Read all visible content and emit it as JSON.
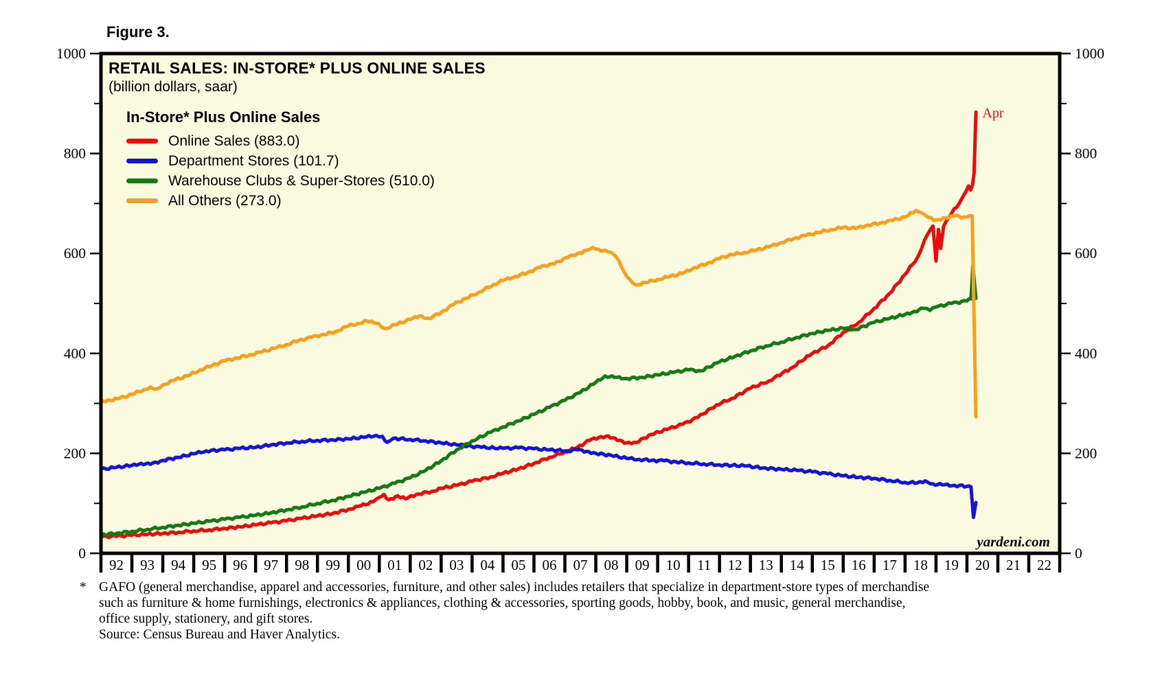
{
  "figure_label": "Figure 3.",
  "chart": {
    "title": "RETAIL SALES: IN-STORE* PLUS ONLINE SALES",
    "subtitle": "(billion dollars, saar)",
    "legend_title": "In-Store* Plus Online Sales",
    "watermark": "yardeni.com",
    "plot_background": "#fafae0",
    "border_color": "#000000"
  },
  "chart_data": {
    "type": "line",
    "title": "RETAIL SALES: IN-STORE* PLUS ONLINE SALES",
    "subtitle": "(billion dollars, saar)",
    "legend_title": "In-Store* Plus Online Sales",
    "legend_position": "upper-left",
    "grid": false,
    "x_range": [
      1992,
      2023
    ],
    "y_range": [
      0,
      1000
    ],
    "y_major_ticks": [
      0,
      200,
      400,
      600,
      800,
      1000
    ],
    "y_minor_ticks": [
      100,
      300,
      500,
      700,
      900
    ],
    "x_labels": [
      "92",
      "93",
      "94",
      "95",
      "96",
      "97",
      "98",
      "99",
      "00",
      "01",
      "02",
      "03",
      "04",
      "05",
      "06",
      "07",
      "08",
      "09",
      "10",
      "11",
      "12",
      "13",
      "14",
      "15",
      "16",
      "17",
      "18",
      "19",
      "20",
      "21",
      "22"
    ],
    "annotation": {
      "text": "Apr",
      "color": "#e80c0c",
      "x_year": 2020.5,
      "y_value": 872
    },
    "watermark": "yardeni.com",
    "series": [
      {
        "name": "Online Sales (883.0)",
        "slug": "online-sales",
        "color": "#e80c0c",
        "last_value": 883.0,
        "values": [
          [
            1992,
            33
          ],
          [
            1992.5,
            34
          ],
          [
            1993,
            36
          ],
          [
            1993.5,
            38
          ],
          [
            1994,
            40
          ],
          [
            1994.5,
            42
          ],
          [
            1995,
            45
          ],
          [
            1995.5,
            47
          ],
          [
            1996,
            50
          ],
          [
            1996.5,
            53
          ],
          [
            1997,
            57
          ],
          [
            1997.5,
            61
          ],
          [
            1998,
            65
          ],
          [
            1998.5,
            70
          ],
          [
            1999,
            75
          ],
          [
            1999.5,
            80
          ],
          [
            2000,
            88
          ],
          [
            2000.4,
            95
          ],
          [
            2000.8,
            103
          ],
          [
            2001,
            112
          ],
          [
            2001.15,
            118
          ],
          [
            2001.3,
            107
          ],
          [
            2001.6,
            115
          ],
          [
            2001.85,
            109
          ],
          [
            2002.2,
            118
          ],
          [
            2002.7,
            124
          ],
          [
            2003,
            130
          ],
          [
            2003.5,
            136
          ],
          [
            2004,
            144
          ],
          [
            2004.6,
            153
          ],
          [
            2005,
            160
          ],
          [
            2005.5,
            169
          ],
          [
            2006,
            180
          ],
          [
            2006.5,
            192
          ],
          [
            2007,
            203
          ],
          [
            2007.4,
            212
          ],
          [
            2007.8,
            226
          ],
          [
            2008.1,
            232
          ],
          [
            2008.4,
            235
          ],
          [
            2008.7,
            226
          ],
          [
            2009,
            221
          ],
          [
            2009.3,
            222
          ],
          [
            2009.8,
            238
          ],
          [
            2010.3,
            248
          ],
          [
            2010.8,
            258
          ],
          [
            2011.3,
            272
          ],
          [
            2011.9,
            297
          ],
          [
            2012.4,
            310
          ],
          [
            2013,
            330
          ],
          [
            2013.6,
            345
          ],
          [
            2014.3,
            370
          ],
          [
            2015,
            400
          ],
          [
            2015.5,
            415
          ],
          [
            2016,
            442
          ],
          [
            2016.5,
            462
          ],
          [
            2017,
            490
          ],
          [
            2017.5,
            520
          ],
          [
            2018,
            558
          ],
          [
            2018.4,
            592
          ],
          [
            2018.7,
            635
          ],
          [
            2018.9,
            655
          ],
          [
            2019,
            585
          ],
          [
            2019.08,
            648
          ],
          [
            2019.15,
            610
          ],
          [
            2019.25,
            655
          ],
          [
            2019.5,
            680
          ],
          [
            2019.75,
            700
          ],
          [
            2019.95,
            722
          ],
          [
            2020.05,
            735
          ],
          [
            2020.12,
            727
          ],
          [
            2020.18,
            737
          ],
          [
            2020.23,
            760
          ],
          [
            2020.29,
            883
          ]
        ]
      },
      {
        "name": "Department Stores (101.7)",
        "slug": "department-stores",
        "color": "#1414d8",
        "last_value": 101.7,
        "values": [
          [
            1992,
            168
          ],
          [
            1992.5,
            172
          ],
          [
            1993,
            176
          ],
          [
            1993.3,
            180
          ],
          [
            1993.6,
            178
          ],
          [
            1994,
            186
          ],
          [
            1994.5,
            192
          ],
          [
            1995,
            199
          ],
          [
            1995.4,
            205
          ],
          [
            1996,
            207
          ],
          [
            1996.5,
            210
          ],
          [
            1997,
            212
          ],
          [
            1997.5,
            217
          ],
          [
            1998,
            221
          ],
          [
            1998.5,
            224
          ],
          [
            1999,
            226
          ],
          [
            1999.5,
            227
          ],
          [
            2000,
            229
          ],
          [
            2000.5,
            232
          ],
          [
            2000.9,
            236
          ],
          [
            2001.1,
            234
          ],
          [
            2001.25,
            222
          ],
          [
            2001.45,
            230
          ],
          [
            2002,
            228
          ],
          [
            2002.5,
            225
          ],
          [
            2003,
            221
          ],
          [
            2003.5,
            217
          ],
          [
            2004.3,
            212
          ],
          [
            2005,
            210
          ],
          [
            2005.5,
            211
          ],
          [
            2006,
            209
          ],
          [
            2006.5,
            207
          ],
          [
            2007.1,
            205
          ],
          [
            2007.4,
            207
          ],
          [
            2007.7,
            204
          ],
          [
            2008,
            200
          ],
          [
            2008.5,
            196
          ],
          [
            2009,
            190
          ],
          [
            2009.4,
            188
          ],
          [
            2009.8,
            186
          ],
          [
            2010.2,
            185
          ],
          [
            2010.6,
            183
          ],
          [
            2011,
            181
          ],
          [
            2011.5,
            179
          ],
          [
            2012,
            177
          ],
          [
            2012.8,
            175
          ],
          [
            2013.4,
            171
          ],
          [
            2014,
            168
          ],
          [
            2014.5,
            166
          ],
          [
            2015,
            163
          ],
          [
            2015.5,
            159
          ],
          [
            2016,
            155
          ],
          [
            2016.5,
            152
          ],
          [
            2017,
            150
          ],
          [
            2017.5,
            146
          ],
          [
            2018,
            142
          ],
          [
            2018.4,
            141
          ],
          [
            2018.65,
            145
          ],
          [
            2018.9,
            139
          ],
          [
            2019.2,
            137
          ],
          [
            2019.6,
            136
          ],
          [
            2020,
            134
          ],
          [
            2020.13,
            133
          ],
          [
            2020.21,
            72
          ],
          [
            2020.29,
            101.7
          ]
        ]
      },
      {
        "name": "Warehouse Clubs & Super-Stores (510.0)",
        "slug": "warehouse-clubs-super-stores",
        "color": "#157a15",
        "last_value": 510.0,
        "values": [
          [
            1992,
            37
          ],
          [
            1992.5,
            40
          ],
          [
            1993,
            44
          ],
          [
            1993.5,
            48
          ],
          [
            1994,
            52
          ],
          [
            1994.5,
            56
          ],
          [
            1995,
            60
          ],
          [
            1995.5,
            64
          ],
          [
            1996,
            68
          ],
          [
            1996.5,
            72
          ],
          [
            1997,
            76
          ],
          [
            1997.5,
            81
          ],
          [
            1998,
            87
          ],
          [
            1998.5,
            93
          ],
          [
            1999,
            100
          ],
          [
            1999.5,
            106
          ],
          [
            2000,
            114
          ],
          [
            2000.5,
            122
          ],
          [
            2001,
            130
          ],
          [
            2001.5,
            140
          ],
          [
            2002,
            151
          ],
          [
            2002.5,
            166
          ],
          [
            2003,
            185
          ],
          [
            2003.5,
            207
          ],
          [
            2004,
            225
          ],
          [
            2004.6,
            242
          ],
          [
            2005,
            253
          ],
          [
            2005.5,
            265
          ],
          [
            2006,
            278
          ],
          [
            2006.5,
            292
          ],
          [
            2007,
            306
          ],
          [
            2007.5,
            322
          ],
          [
            2008,
            342
          ],
          [
            2008.3,
            355
          ],
          [
            2008.6,
            352
          ],
          [
            2009,
            350
          ],
          [
            2009.5,
            352
          ],
          [
            2010,
            357
          ],
          [
            2010.5,
            362
          ],
          [
            2011,
            367
          ],
          [
            2011.4,
            365
          ],
          [
            2012,
            383
          ],
          [
            2012.5,
            394
          ],
          [
            2013,
            405
          ],
          [
            2013.5,
            415
          ],
          [
            2014,
            423
          ],
          [
            2014.5,
            432
          ],
          [
            2015,
            440
          ],
          [
            2015.5,
            446
          ],
          [
            2016,
            450
          ],
          [
            2016.4,
            448
          ],
          [
            2017,
            462
          ],
          [
            2017.5,
            470
          ],
          [
            2018,
            478
          ],
          [
            2018.3,
            484
          ],
          [
            2018.6,
            490
          ],
          [
            2018.8,
            486
          ],
          [
            2019,
            493
          ],
          [
            2019.5,
            500
          ],
          [
            2020,
            505
          ],
          [
            2020.13,
            509
          ],
          [
            2020.19,
            575
          ],
          [
            2020.29,
            510
          ]
        ]
      },
      {
        "name": "All Others (273.0)",
        "slug": "all-others",
        "color": "#f7a01d",
        "last_value": 273.0,
        "values": [
          [
            1992,
            305
          ],
          [
            1992.3,
            306
          ],
          [
            1992.6,
            310
          ],
          [
            1993,
            318
          ],
          [
            1993.4,
            328
          ],
          [
            1993.6,
            333
          ],
          [
            1993.8,
            329
          ],
          [
            1994,
            337
          ],
          [
            1994.4,
            347
          ],
          [
            1994.8,
            355
          ],
          [
            1995.2,
            367
          ],
          [
            1995.6,
            376
          ],
          [
            1996,
            385
          ],
          [
            1996.4,
            391
          ],
          [
            1996.8,
            397
          ],
          [
            1997.2,
            403
          ],
          [
            1997.6,
            410
          ],
          [
            1998,
            418
          ],
          [
            1998.4,
            426
          ],
          [
            1998.8,
            432
          ],
          [
            1999.2,
            438
          ],
          [
            1999.6,
            444
          ],
          [
            2000,
            455
          ],
          [
            2000.3,
            460
          ],
          [
            2000.6,
            465
          ],
          [
            2000.9,
            460
          ],
          [
            2001.2,
            450
          ],
          [
            2001.5,
            457
          ],
          [
            2002,
            468
          ],
          [
            2002.3,
            475
          ],
          [
            2002.6,
            470
          ],
          [
            2003,
            482
          ],
          [
            2003.4,
            498
          ],
          [
            2003.8,
            510
          ],
          [
            2004.2,
            522
          ],
          [
            2004.7,
            538
          ],
          [
            2005,
            546
          ],
          [
            2005.4,
            554
          ],
          [
            2005.8,
            562
          ],
          [
            2006.2,
            572
          ],
          [
            2006.5,
            578
          ],
          [
            2006.8,
            584
          ],
          [
            2007.1,
            592
          ],
          [
            2007.4,
            600
          ],
          [
            2007.7,
            606
          ],
          [
            2007.9,
            612
          ],
          [
            2008.1,
            608
          ],
          [
            2008.4,
            603
          ],
          [
            2008.6,
            597
          ],
          [
            2008.75,
            585
          ],
          [
            2008.9,
            565
          ],
          [
            2009.1,
            548
          ],
          [
            2009.3,
            537
          ],
          [
            2009.6,
            542
          ],
          [
            2010,
            548
          ],
          [
            2010.4,
            554
          ],
          [
            2010.8,
            560
          ],
          [
            2011.2,
            572
          ],
          [
            2011.6,
            580
          ],
          [
            2012,
            590
          ],
          [
            2012.4,
            598
          ],
          [
            2012.8,
            602
          ],
          [
            2013.2,
            607
          ],
          [
            2013.6,
            613
          ],
          [
            2014,
            622
          ],
          [
            2014.4,
            630
          ],
          [
            2014.8,
            636
          ],
          [
            2015.2,
            642
          ],
          [
            2015.6,
            648
          ],
          [
            2016,
            652
          ],
          [
            2016.4,
            650
          ],
          [
            2016.8,
            657
          ],
          [
            2017.2,
            661
          ],
          [
            2017.6,
            666
          ],
          [
            2018,
            673
          ],
          [
            2018.35,
            686
          ],
          [
            2018.55,
            681
          ],
          [
            2018.75,
            672
          ],
          [
            2019,
            667
          ],
          [
            2019.3,
            671
          ],
          [
            2019.6,
            675
          ],
          [
            2019.9,
            673
          ],
          [
            2020.1,
            676
          ],
          [
            2020.17,
            675
          ],
          [
            2020.29,
            273
          ]
        ]
      }
    ]
  },
  "footnote": {
    "marker": "*",
    "lines": [
      "GAFO (general merchandise, apparel and accessories, furniture, and other sales) includes retailers that specialize in department-store types of merchandise",
      "such as furniture & home furnishings, electronics & appliances, clothing & accessories, sporting goods, hobby, book, and music, general merchandise,",
      "office supply, stationery, and gift stores."
    ],
    "source": "Source: Census Bureau and Haver Analytics."
  }
}
